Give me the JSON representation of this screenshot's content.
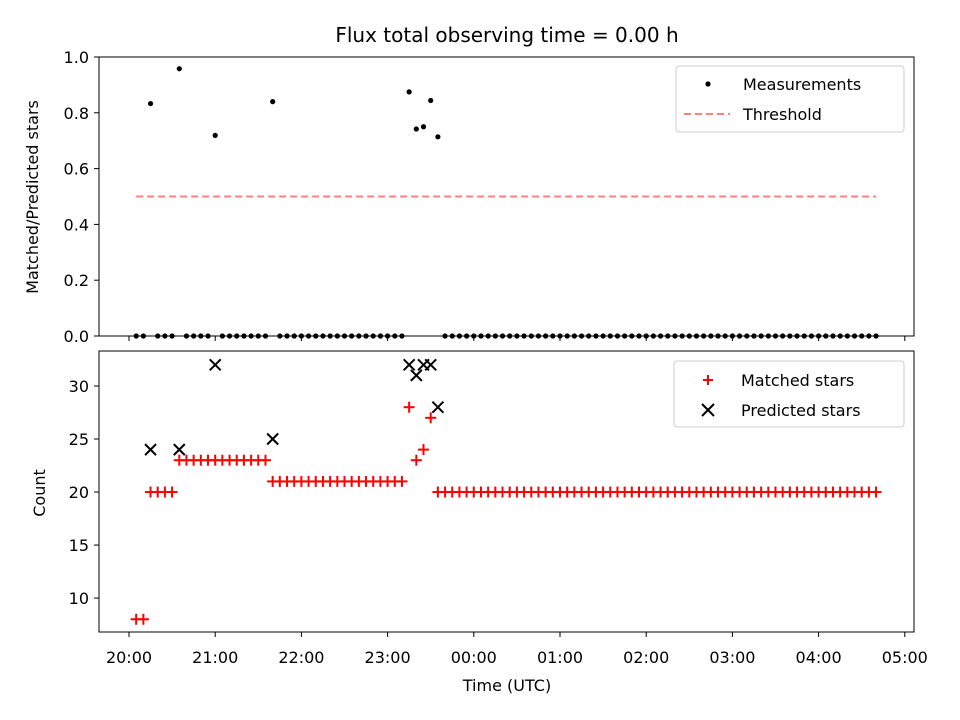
{
  "chart_data": [
    {
      "type": "scatter",
      "title": "Flux total observing time = 0.00 h",
      "xlabel": "",
      "ylabel": "Matched/Predicted stars",
      "ylim": [
        0,
        1.0
      ],
      "yticks": [
        "0.0",
        "0.2",
        "0.4",
        "0.6",
        "0.8",
        "1.0"
      ],
      "x_time_range": [
        "20:05",
        "04:40"
      ],
      "legend": "top-right",
      "grid": false,
      "series": [
        {
          "name": "Measurements",
          "marker": "dot",
          "color": "#000000",
          "points": [
            [
              "20:05",
              0.0
            ],
            [
              "20:10",
              0.0
            ],
            [
              "20:15",
              0.833
            ],
            [
              "20:20",
              0.0
            ],
            [
              "20:25",
              0.0
            ],
            [
              "20:30",
              0.0
            ],
            [
              "20:35",
              0.958
            ],
            [
              "20:40",
              0.0
            ],
            [
              "20:45",
              0.0
            ],
            [
              "20:50",
              0.0
            ],
            [
              "20:55",
              0.0
            ],
            [
              "21:00",
              0.719
            ],
            [
              "21:05",
              0.0
            ],
            [
              "21:10",
              0.0
            ],
            [
              "21:15",
              0.0
            ],
            [
              "21:20",
              0.0
            ],
            [
              "21:25",
              0.0
            ],
            [
              "21:30",
              0.0
            ],
            [
              "21:35",
              0.0
            ],
            [
              "21:40",
              0.84
            ],
            [
              "21:45",
              0.0
            ],
            [
              "21:50",
              0.0
            ],
            [
              "21:55",
              0.0
            ],
            [
              "22:00",
              0.0
            ],
            [
              "22:05",
              0.0
            ],
            [
              "22:10",
              0.0
            ],
            [
              "22:15",
              0.0
            ],
            [
              "22:20",
              0.0
            ],
            [
              "22:25",
              0.0
            ],
            [
              "22:30",
              0.0
            ],
            [
              "22:35",
              0.0
            ],
            [
              "22:40",
              0.0
            ],
            [
              "22:45",
              0.0
            ],
            [
              "22:50",
              0.0
            ],
            [
              "22:55",
              0.0
            ],
            [
              "23:00",
              0.0
            ],
            [
              "23:05",
              0.0
            ],
            [
              "23:10",
              0.0
            ],
            [
              "23:15",
              0.875
            ],
            [
              "23:20",
              0.742
            ],
            [
              "23:25",
              0.75
            ],
            [
              "23:30",
              0.844
            ],
            [
              "23:35",
              0.714
            ],
            [
              "23:40",
              0.0
            ],
            [
              "23:45",
              0.0
            ],
            [
              "23:50",
              0.0
            ],
            [
              "23:55",
              0.0
            ],
            [
              "00:00",
              0.0
            ],
            [
              "00:05",
              0.0
            ],
            [
              "00:10",
              0.0
            ],
            [
              "00:15",
              0.0
            ],
            [
              "00:20",
              0.0
            ],
            [
              "00:25",
              0.0
            ],
            [
              "00:30",
              0.0
            ],
            [
              "00:35",
              0.0
            ],
            [
              "00:40",
              0.0
            ],
            [
              "00:45",
              0.0
            ],
            [
              "00:50",
              0.0
            ],
            [
              "00:55",
              0.0
            ],
            [
              "01:00",
              0.0
            ],
            [
              "01:05",
              0.0
            ],
            [
              "01:10",
              0.0
            ],
            [
              "01:15",
              0.0
            ],
            [
              "01:20",
              0.0
            ],
            [
              "01:25",
              0.0
            ],
            [
              "01:30",
              0.0
            ],
            [
              "01:35",
              0.0
            ],
            [
              "01:40",
              0.0
            ],
            [
              "01:45",
              0.0
            ],
            [
              "01:50",
              0.0
            ],
            [
              "01:55",
              0.0
            ],
            [
              "02:00",
              0.0
            ],
            [
              "02:05",
              0.0
            ],
            [
              "02:10",
              0.0
            ],
            [
              "02:15",
              0.0
            ],
            [
              "02:20",
              0.0
            ],
            [
              "02:25",
              0.0
            ],
            [
              "02:30",
              0.0
            ],
            [
              "02:35",
              0.0
            ],
            [
              "02:40",
              0.0
            ],
            [
              "02:45",
              0.0
            ],
            [
              "02:50",
              0.0
            ],
            [
              "02:55",
              0.0
            ],
            [
              "03:00",
              0.0
            ],
            [
              "03:05",
              0.0
            ],
            [
              "03:10",
              0.0
            ],
            [
              "03:15",
              0.0
            ],
            [
              "03:20",
              0.0
            ],
            [
              "03:25",
              0.0
            ],
            [
              "03:30",
              0.0
            ],
            [
              "03:35",
              0.0
            ],
            [
              "03:40",
              0.0
            ],
            [
              "03:45",
              0.0
            ],
            [
              "03:50",
              0.0
            ],
            [
              "03:55",
              0.0
            ],
            [
              "04:00",
              0.0
            ],
            [
              "04:05",
              0.0
            ],
            [
              "04:10",
              0.0
            ],
            [
              "04:15",
              0.0
            ],
            [
              "04:20",
              0.0
            ],
            [
              "04:25",
              0.0
            ],
            [
              "04:30",
              0.0
            ],
            [
              "04:35",
              0.0
            ],
            [
              "04:40",
              0.0
            ]
          ]
        },
        {
          "name": "Threshold",
          "type": "line",
          "style": "dashed",
          "color": "#ff7f7f",
          "points": [
            [
              "20:05",
              0.5
            ],
            [
              "04:40",
              0.5
            ]
          ]
        }
      ]
    },
    {
      "type": "scatter",
      "title": "",
      "xlabel": "Time (UTC)",
      "ylabel": "Count",
      "ylim": [
        6.8,
        33.3
      ],
      "yticks": [
        "10",
        "15",
        "20",
        "25",
        "30"
      ],
      "xticks": [
        "20:00",
        "21:00",
        "22:00",
        "23:00",
        "00:00",
        "01:00",
        "02:00",
        "03:00",
        "04:00",
        "05:00"
      ],
      "legend": "top-right",
      "grid": false,
      "series": [
        {
          "name": "Matched stars",
          "marker": "plus",
          "color": "#ff0000",
          "points": [
            [
              "20:05",
              8
            ],
            [
              "20:10",
              8
            ],
            [
              "20:15",
              20
            ],
            [
              "20:20",
              20
            ],
            [
              "20:25",
              20
            ],
            [
              "20:30",
              20
            ],
            [
              "20:35",
              23
            ],
            [
              "20:40",
              23
            ],
            [
              "20:45",
              23
            ],
            [
              "20:50",
              23
            ],
            [
              "20:55",
              23
            ],
            [
              "21:00",
              23
            ],
            [
              "21:05",
              23
            ],
            [
              "21:10",
              23
            ],
            [
              "21:15",
              23
            ],
            [
              "21:20",
              23
            ],
            [
              "21:25",
              23
            ],
            [
              "21:30",
              23
            ],
            [
              "21:35",
              23
            ],
            [
              "21:40",
              21
            ],
            [
              "21:45",
              21
            ],
            [
              "21:50",
              21
            ],
            [
              "21:55",
              21
            ],
            [
              "22:00",
              21
            ],
            [
              "22:05",
              21
            ],
            [
              "22:10",
              21
            ],
            [
              "22:15",
              21
            ],
            [
              "22:20",
              21
            ],
            [
              "22:25",
              21
            ],
            [
              "22:30",
              21
            ],
            [
              "22:35",
              21
            ],
            [
              "22:40",
              21
            ],
            [
              "22:45",
              21
            ],
            [
              "22:50",
              21
            ],
            [
              "22:55",
              21
            ],
            [
              "23:00",
              21
            ],
            [
              "23:05",
              21
            ],
            [
              "23:10",
              21
            ],
            [
              "23:15",
              28
            ],
            [
              "23:20",
              23
            ],
            [
              "23:25",
              24
            ],
            [
              "23:30",
              27
            ],
            [
              "23:35",
              20
            ],
            [
              "23:40",
              20
            ],
            [
              "23:45",
              20
            ],
            [
              "23:50",
              20
            ],
            [
              "23:55",
              20
            ],
            [
              "00:00",
              20
            ],
            [
              "00:05",
              20
            ],
            [
              "00:10",
              20
            ],
            [
              "00:15",
              20
            ],
            [
              "00:20",
              20
            ],
            [
              "00:25",
              20
            ],
            [
              "00:30",
              20
            ],
            [
              "00:35",
              20
            ],
            [
              "00:40",
              20
            ],
            [
              "00:45",
              20
            ],
            [
              "00:50",
              20
            ],
            [
              "00:55",
              20
            ],
            [
              "01:00",
              20
            ],
            [
              "01:05",
              20
            ],
            [
              "01:10",
              20
            ],
            [
              "01:15",
              20
            ],
            [
              "01:20",
              20
            ],
            [
              "01:25",
              20
            ],
            [
              "01:30",
              20
            ],
            [
              "01:35",
              20
            ],
            [
              "01:40",
              20
            ],
            [
              "01:45",
              20
            ],
            [
              "01:50",
              20
            ],
            [
              "01:55",
              20
            ],
            [
              "02:00",
              20
            ],
            [
              "02:05",
              20
            ],
            [
              "02:10",
              20
            ],
            [
              "02:15",
              20
            ],
            [
              "02:20",
              20
            ],
            [
              "02:25",
              20
            ],
            [
              "02:30",
              20
            ],
            [
              "02:35",
              20
            ],
            [
              "02:40",
              20
            ],
            [
              "02:45",
              20
            ],
            [
              "02:50",
              20
            ],
            [
              "02:55",
              20
            ],
            [
              "03:00",
              20
            ],
            [
              "03:05",
              20
            ],
            [
              "03:10",
              20
            ],
            [
              "03:15",
              20
            ],
            [
              "03:20",
              20
            ],
            [
              "03:25",
              20
            ],
            [
              "03:30",
              20
            ],
            [
              "03:35",
              20
            ],
            [
              "03:40",
              20
            ],
            [
              "03:45",
              20
            ],
            [
              "03:50",
              20
            ],
            [
              "03:55",
              20
            ],
            [
              "04:00",
              20
            ],
            [
              "04:05",
              20
            ],
            [
              "04:10",
              20
            ],
            [
              "04:15",
              20
            ],
            [
              "04:20",
              20
            ],
            [
              "04:25",
              20
            ],
            [
              "04:30",
              20
            ],
            [
              "04:35",
              20
            ],
            [
              "04:40",
              20
            ]
          ]
        },
        {
          "name": "Predicted stars",
          "marker": "x",
          "color": "#000000",
          "points": [
            [
              "20:15",
              24
            ],
            [
              "20:35",
              24
            ],
            [
              "21:00",
              32
            ],
            [
              "21:40",
              25
            ],
            [
              "23:15",
              32
            ],
            [
              "23:20",
              31
            ],
            [
              "23:25",
              32
            ],
            [
              "23:30",
              32
            ],
            [
              "23:35",
              28
            ]
          ]
        }
      ]
    }
  ]
}
